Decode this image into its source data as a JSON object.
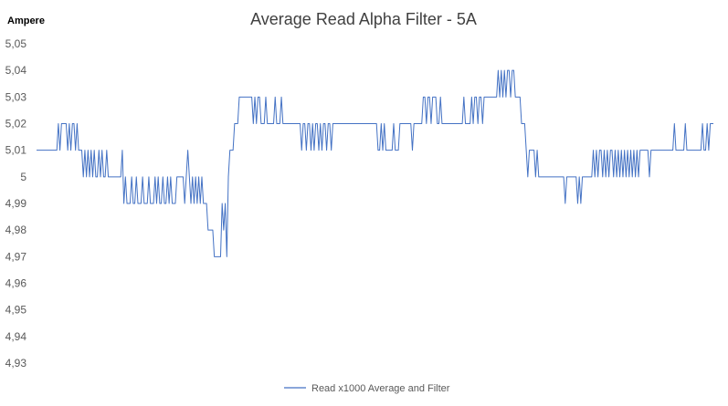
{
  "chart_data": {
    "type": "line",
    "title": "Average Read Alpha Filter - 5A",
    "xlabel": "",
    "ylabel": "Ampere",
    "ylim": [
      4.93,
      5.05
    ],
    "y_ticks": [
      "5,05",
      "5,04",
      "5,03",
      "5,02",
      "5,01",
      "5",
      "4,99",
      "4,98",
      "4,97",
      "4,96",
      "4,95",
      "4,94",
      "4,93"
    ],
    "grid": false,
    "legend": "bottom",
    "series": [
      {
        "name": "Read x1000 Average and Filter",
        "color": "#4472c4",
        "values": [
          5.01,
          5.01,
          5.01,
          5.01,
          5.01,
          5.01,
          5.01,
          5.01,
          5.01,
          5.01,
          5.01,
          5.01,
          5.01,
          5.01,
          5.02,
          5.01,
          5.02,
          5.02,
          5.02,
          5.02,
          5.01,
          5.02,
          5.01,
          5.02,
          5.02,
          5.01,
          5.02,
          5.01,
          5.01,
          5.01,
          5.0,
          5.01,
          5.0,
          5.01,
          5.0,
          5.01,
          5.0,
          5.01,
          5.0,
          5.0,
          5.01,
          5.0,
          5.01,
          5.0,
          5.0,
          5.01,
          5.0,
          5.0,
          5.0,
          5.0,
          5.0,
          5.0,
          5.0,
          5.0,
          5.0,
          5.01,
          4.99,
          5.0,
          4.99,
          4.99,
          4.99,
          5.0,
          4.99,
          4.99,
          5.0,
          4.99,
          4.99,
          4.99,
          5.0,
          4.99,
          4.99,
          4.99,
          5.0,
          4.99,
          4.99,
          4.99,
          5.0,
          4.99,
          5.0,
          4.99,
          4.99,
          5.0,
          4.99,
          4.99,
          5.0,
          4.99,
          5.0,
          4.99,
          4.99,
          4.99,
          5.0,
          5.0,
          5.0,
          5.0,
          5.0,
          4.99,
          5.0,
          5.01,
          5.0,
          4.99,
          5.0,
          4.99,
          5.0,
          4.99,
          5.0,
          4.99,
          5.0,
          4.99,
          4.99,
          4.99,
          4.98,
          4.98,
          4.98,
          4.98,
          4.97,
          4.97,
          4.97,
          4.97,
          4.97,
          4.99,
          4.98,
          4.99,
          4.97,
          5.0,
          5.01,
          5.01,
          5.01,
          5.02,
          5.02,
          5.02,
          5.03,
          5.03,
          5.03,
          5.03,
          5.03,
          5.03,
          5.03,
          5.03,
          5.03,
          5.02,
          5.03,
          5.02,
          5.03,
          5.03,
          5.02,
          5.02,
          5.02,
          5.03,
          5.02,
          5.02,
          5.02,
          5.02,
          5.02,
          5.03,
          5.02,
          5.02,
          5.02,
          5.03,
          5.02,
          5.02,
          5.02,
          5.02,
          5.02,
          5.02,
          5.02,
          5.02,
          5.02,
          5.02,
          5.02,
          5.02,
          5.01,
          5.02,
          5.02,
          5.01,
          5.02,
          5.02,
          5.01,
          5.02,
          5.01,
          5.02,
          5.02,
          5.01,
          5.02,
          5.01,
          5.02,
          5.02,
          5.01,
          5.02,
          5.02,
          5.01,
          5.02,
          5.02,
          5.02,
          5.02,
          5.02,
          5.02,
          5.02,
          5.02,
          5.02,
          5.02,
          5.02,
          5.02,
          5.02,
          5.02,
          5.02,
          5.02,
          5.02,
          5.02,
          5.02,
          5.02,
          5.02,
          5.02,
          5.02,
          5.02,
          5.02,
          5.02,
          5.02,
          5.02,
          5.02,
          5.01,
          5.01,
          5.02,
          5.01,
          5.02,
          5.01,
          5.01,
          5.01,
          5.01,
          5.01,
          5.02,
          5.01,
          5.01,
          5.01,
          5.02,
          5.02,
          5.02,
          5.02,
          5.02,
          5.02,
          5.02,
          5.02,
          5.01,
          5.02,
          5.02,
          5.02,
          5.02,
          5.02,
          5.02,
          5.03,
          5.03,
          5.02,
          5.03,
          5.03,
          5.02,
          5.03,
          5.03,
          5.03,
          5.02,
          5.02,
          5.03,
          5.02,
          5.02,
          5.02,
          5.02,
          5.02,
          5.02,
          5.02,
          5.02,
          5.02,
          5.02,
          5.02,
          5.02,
          5.02,
          5.02,
          5.03,
          5.02,
          5.02,
          5.02,
          5.02,
          5.03,
          5.02,
          5.03,
          5.03,
          5.02,
          5.03,
          5.03,
          5.02,
          5.03,
          5.03,
          5.03,
          5.03,
          5.03,
          5.03,
          5.03,
          5.03,
          5.03,
          5.04,
          5.03,
          5.04,
          5.03,
          5.04,
          5.03,
          5.04,
          5.04,
          5.03,
          5.04,
          5.04,
          5.03,
          5.03,
          5.03,
          5.03,
          5.02,
          5.02,
          5.02,
          5.01,
          5.0,
          5.01,
          5.01,
          5.01,
          5.01,
          5.0,
          5.01,
          5.0,
          5.0,
          5.0,
          5.0,
          5.0,
          5.0,
          5.0,
          5.0,
          5.0,
          5.0,
          5.0,
          5.0,
          5.0,
          5.0,
          5.0,
          5.0,
          5.0,
          4.99,
          5.0,
          5.0,
          5.0,
          5.0,
          5.0,
          5.0,
          5.0,
          4.99,
          5.0,
          4.99,
          5.0,
          5.0,
          5.0,
          5.0,
          5.0,
          5.0,
          5.0,
          5.01,
          5.0,
          5.01,
          5.0,
          5.01,
          5.01,
          5.0,
          5.01,
          5.0,
          5.01,
          5.0,
          5.01,
          5.01,
          5.0,
          5.01,
          5.0,
          5.01,
          5.0,
          5.01,
          5.0,
          5.01,
          5.0,
          5.01,
          5.0,
          5.01,
          5.0,
          5.01,
          5.0,
          5.01,
          5.0,
          5.01,
          5.01,
          5.01,
          5.01,
          5.01,
          5.01,
          5.0,
          5.01,
          5.01,
          5.01,
          5.01,
          5.01,
          5.01,
          5.01,
          5.01,
          5.01,
          5.01,
          5.01,
          5.01,
          5.01,
          5.01,
          5.01,
          5.02,
          5.01,
          5.01,
          5.01,
          5.01,
          5.01,
          5.01,
          5.02,
          5.01,
          5.01,
          5.01,
          5.01,
          5.01,
          5.01,
          5.01,
          5.01,
          5.01,
          5.01,
          5.02,
          5.01,
          5.01,
          5.02,
          5.01,
          5.02,
          5.02,
          5.02
        ]
      }
    ]
  }
}
